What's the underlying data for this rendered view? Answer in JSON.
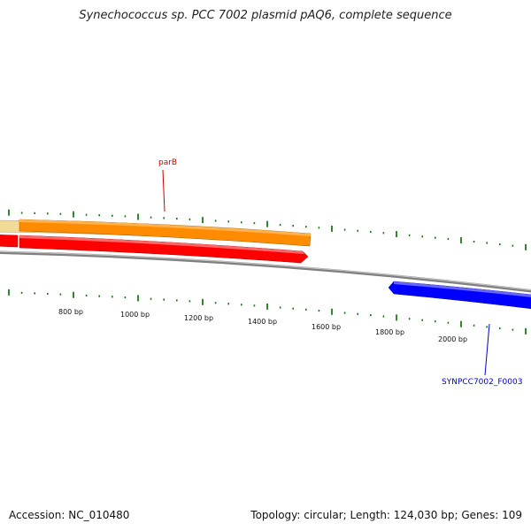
{
  "title": "Synechococcus sp. PCC 7002 plasmid pAQ6, complete sequence",
  "footer": {
    "accession": "Accession: NC_010480",
    "summary": "Topology: circular; Length: 124,030 bp; Genes: 109"
  },
  "scale_labels": [
    "800 bp",
    "1000 bp",
    "1200 bp",
    "1400 bp",
    "1600 bp",
    "1800 bp",
    "2000 bp"
  ],
  "genes": [
    {
      "name": "parB",
      "color": "#cc0000"
    },
    {
      "name": "SYNPCC7002_F0003",
      "color": "#0000cc"
    }
  ],
  "colors": {
    "tick": "#1a7a1a",
    "backbone": "#808080",
    "orange_feature": "#ff8c00",
    "light_feature": "#f0dc96",
    "red_feature": "#ff0000",
    "blue_feature": "#0000ff"
  }
}
